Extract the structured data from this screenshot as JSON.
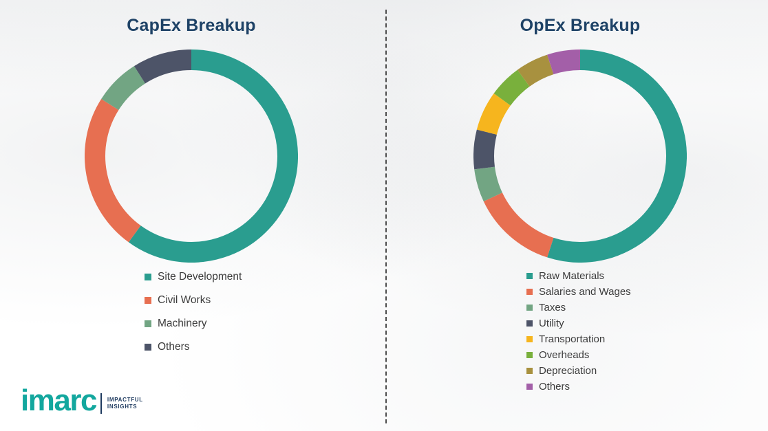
{
  "chart_data": [
    {
      "type": "pie",
      "subtype": "donut",
      "title": "CapEx Breakup",
      "legend_position": "bottom",
      "direction": "clockwise",
      "start_angle_deg": 0,
      "values_estimated": true,
      "series": [
        {
          "label": "Site Development",
          "value": 60,
          "color": "#2a9d8f"
        },
        {
          "label": "Civil Works",
          "value": 24,
          "color": "#e76f51"
        },
        {
          "label": "Machinery",
          "value": 7,
          "color": "#72a583"
        },
        {
          "label": "Others",
          "value": 9,
          "color": "#4d5468"
        }
      ]
    },
    {
      "type": "pie",
      "subtype": "donut",
      "title": "OpEx Breakup",
      "legend_position": "bottom",
      "direction": "clockwise",
      "start_angle_deg": 0,
      "values_estimated": true,
      "series": [
        {
          "label": "Raw Materials",
          "value": 55,
          "color": "#2a9d8f"
        },
        {
          "label": "Salaries and Wages",
          "value": 13,
          "color": "#e76f51"
        },
        {
          "label": "Taxes",
          "value": 5,
          "color": "#72a583"
        },
        {
          "label": "Utility",
          "value": 6,
          "color": "#4d5468"
        },
        {
          "label": "Transportation",
          "value": 6,
          "color": "#f6b51e"
        },
        {
          "label": "Overheads",
          "value": 5,
          "color": "#79b03c"
        },
        {
          "label": "Depreciation",
          "value": 5,
          "color": "#a8913f"
        },
        {
          "label": "Others",
          "value": 5,
          "color": "#a35fa8"
        }
      ]
    }
  ],
  "logo": {
    "brand": "imarc",
    "tagline_line1": "IMPACTFUL",
    "tagline_line2": "INSIGHTS"
  }
}
